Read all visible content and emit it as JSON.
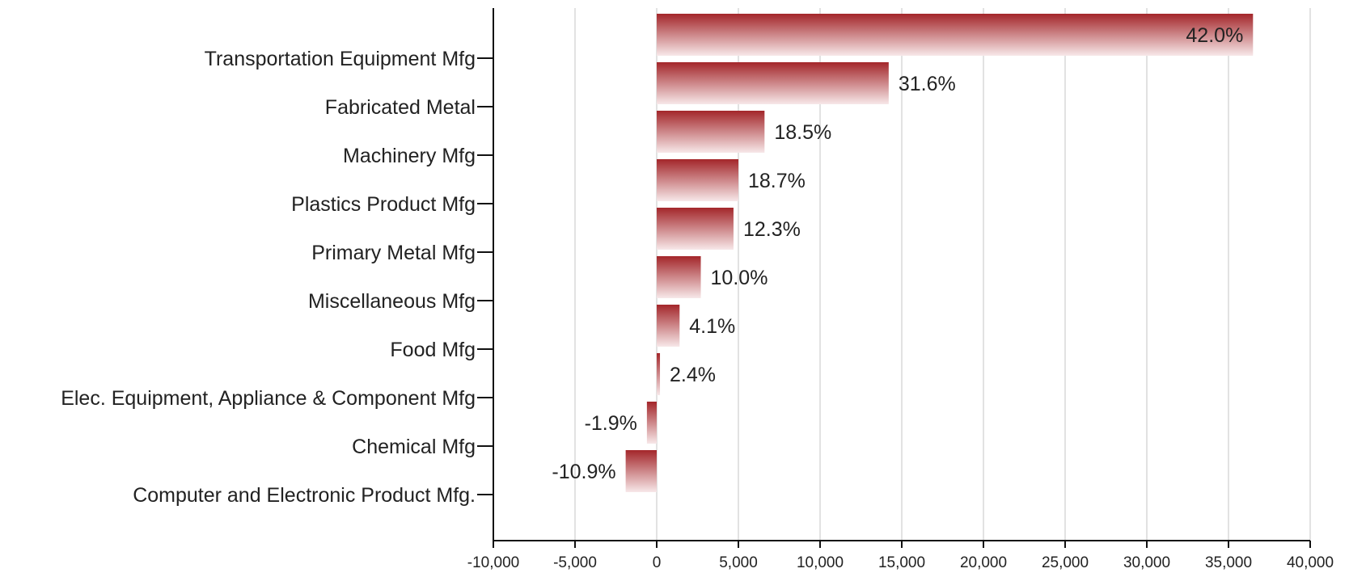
{
  "chart_data": {
    "type": "bar",
    "orientation": "horizontal",
    "categories": [
      "Transportation Equipment Mfg",
      "Fabricated Metal",
      "Machinery Mfg",
      "Plastics Product Mfg",
      "Primary Metal Mfg",
      "Miscellaneous Mfg",
      "Food Mfg",
      "Elec. Equipment, Appliance & Component Mfg",
      "Chemical Mfg",
      "Computer and Electronic Product Mfg."
    ],
    "values": [
      36500,
      14200,
      6600,
      5000,
      4700,
      2700,
      1400,
      200,
      -600,
      -1900
    ],
    "data_labels": [
      "42.0%",
      "31.6%",
      "18.5%",
      "18.7%",
      "12.3%",
      "10.0%",
      "4.1%",
      "2.4%",
      "-1.9%",
      "-10.9%"
    ],
    "xlim": [
      -10000,
      40000
    ],
    "xticks": [
      -10000,
      -5000,
      0,
      5000,
      10000,
      15000,
      20000,
      25000,
      30000,
      35000,
      40000
    ],
    "xtick_labels": [
      "-10,000",
      "-5,000",
      "0",
      "5,000",
      "10,000",
      "15,000",
      "20,000",
      "25,000",
      "30,000",
      "35,000",
      "40,000"
    ],
    "grid": "vertical",
    "legend": "none",
    "title": "",
    "xlabel": "",
    "ylabel": "",
    "bar_color": "#a3262a",
    "bar_fade_color": "#f7e8e9"
  }
}
